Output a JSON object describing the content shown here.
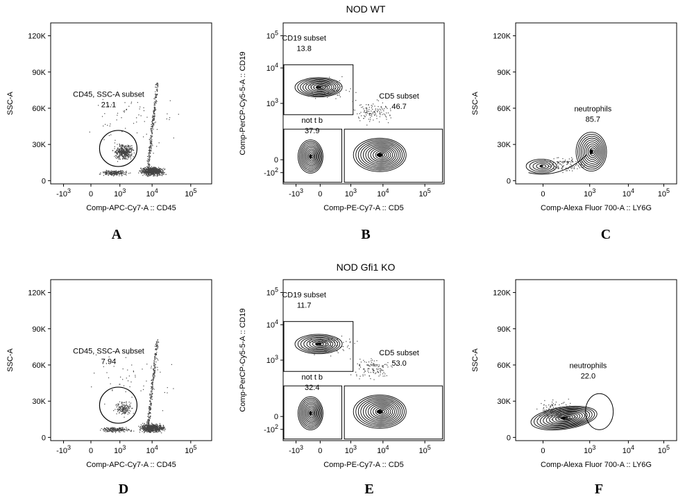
{
  "row_titles": [
    "NOD WT",
    "NOD Gfi1 KO"
  ],
  "panel_letters": [
    "A",
    "B",
    "C",
    "D",
    "E",
    "F"
  ],
  "chart_data": [
    {
      "panel": "A",
      "type": "scatter",
      "xlabel": "Comp-APC-Cy7-A :: CD45",
      "ylabel": "SSC-A",
      "xticks": [
        "-10 3",
        "0",
        "10 3",
        "10 4",
        "10 5"
      ],
      "yticks": [
        "0",
        "30K",
        "60K",
        "90K",
        "120K"
      ],
      "ylim": [
        0,
        120000
      ],
      "gates": [
        {
          "name": "CD45, SSC-A subset",
          "value": "21.1",
          "shape": "ellipse"
        }
      ],
      "populations": [
        {
          "x": 1200,
          "y": 18000
        },
        {
          "x": 8000,
          "y": 4000
        }
      ]
    },
    {
      "panel": "B",
      "type": "scatter",
      "xlabel": "Comp-PE-Cy7-A :: CD5",
      "ylabel": "Comp-PerCP-Cy5-5-A :: CD19",
      "xticks": [
        "-10 3",
        "0",
        "10 3",
        "10 4",
        "10 5"
      ],
      "yticks": [
        "-10 2",
        "0",
        "10 3",
        "10 4",
        "10 5"
      ],
      "gates": [
        {
          "name": "CD19 subset",
          "value": "13.8",
          "shape": "rectangle"
        },
        {
          "name": "CD5 subset",
          "value": "46.7",
          "shape": "rectangle"
        },
        {
          "name": "not t b",
          "value": "37.9",
          "shape": "rectangle"
        }
      ]
    },
    {
      "panel": "C",
      "type": "scatter",
      "xlabel": "Comp-Alexa Fluor 700-A :: LY6G",
      "ylabel": "SSC-A",
      "xticks": [
        "0",
        "10 3",
        "10 4",
        "10 5"
      ],
      "yticks": [
        "0",
        "30K",
        "60K",
        "90K",
        "120K"
      ],
      "ylim": [
        0,
        120000
      ],
      "gates": [
        {
          "name": "neutrophils",
          "value": "85.7",
          "shape": "ellipse"
        }
      ]
    },
    {
      "panel": "D",
      "type": "scatter",
      "xlabel": "Comp-APC-Cy7-A :: CD45",
      "ylabel": "SSC-A",
      "xticks": [
        "-10 3",
        "0",
        "10 3",
        "10 4",
        "10 5"
      ],
      "yticks": [
        "0",
        "30K",
        "60K",
        "90K",
        "120K"
      ],
      "ylim": [
        0,
        120000
      ],
      "gates": [
        {
          "name": "CD45, SSC-A subset",
          "value": "7.94",
          "shape": "ellipse"
        }
      ]
    },
    {
      "panel": "E",
      "type": "scatter",
      "xlabel": "Comp-PE-Cy7-A :: CD5",
      "ylabel": "Comp-PerCP-Cy5-5-A :: CD19",
      "xticks": [
        "-10 3",
        "0",
        "10 3",
        "10 4",
        "10 5"
      ],
      "yticks": [
        "-10 2",
        "0",
        "10 3",
        "10 4",
        "10 5"
      ],
      "gates": [
        {
          "name": "CD19 subset",
          "value": "11.7",
          "shape": "rectangle"
        },
        {
          "name": "CD5 subset",
          "value": "53.0",
          "shape": "rectangle"
        },
        {
          "name": "not t b",
          "value": "32.4",
          "shape": "rectangle"
        }
      ]
    },
    {
      "panel": "F",
      "type": "scatter",
      "xlabel": "Comp-Alexa Fluor 700-A :: LY6G",
      "ylabel": "SSC-A",
      "xticks": [
        "0",
        "10 3",
        "10 4",
        "10 5"
      ],
      "yticks": [
        "0",
        "30K",
        "60K",
        "90K",
        "120K"
      ],
      "ylim": [
        0,
        120000
      ],
      "gates": [
        {
          "name": "neutrophils",
          "value": "22.0",
          "shape": "ellipse"
        }
      ]
    }
  ]
}
